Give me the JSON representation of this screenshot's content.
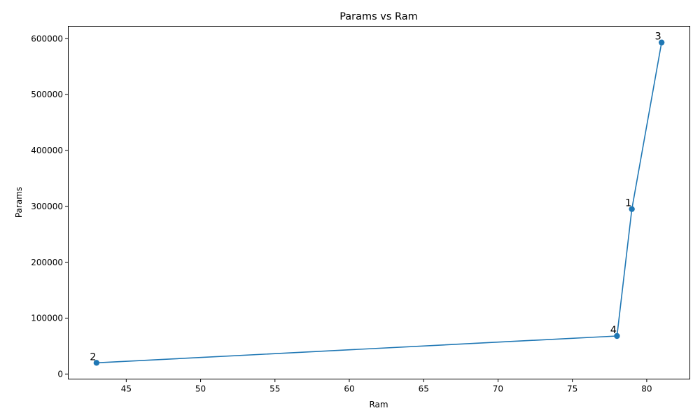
{
  "chart_data": {
    "type": "line",
    "title": "Params vs Ram",
    "xlabel": "Ram",
    "ylabel": "Params",
    "xlim": [
      41.1,
      82.9
    ],
    "ylim": [
      -9000,
      622000
    ],
    "x_ticks": [
      45,
      50,
      55,
      60,
      65,
      70,
      75,
      80
    ],
    "y_ticks": [
      0,
      100000,
      200000,
      300000,
      400000,
      500000,
      600000
    ],
    "grid": false,
    "color": "#1f77b4",
    "points": [
      {
        "label": "2",
        "x": 43,
        "y": 20000
      },
      {
        "label": "4",
        "x": 78,
        "y": 68000
      },
      {
        "label": "1",
        "x": 79,
        "y": 295000
      },
      {
        "label": "3",
        "x": 81,
        "y": 593000
      }
    ]
  }
}
